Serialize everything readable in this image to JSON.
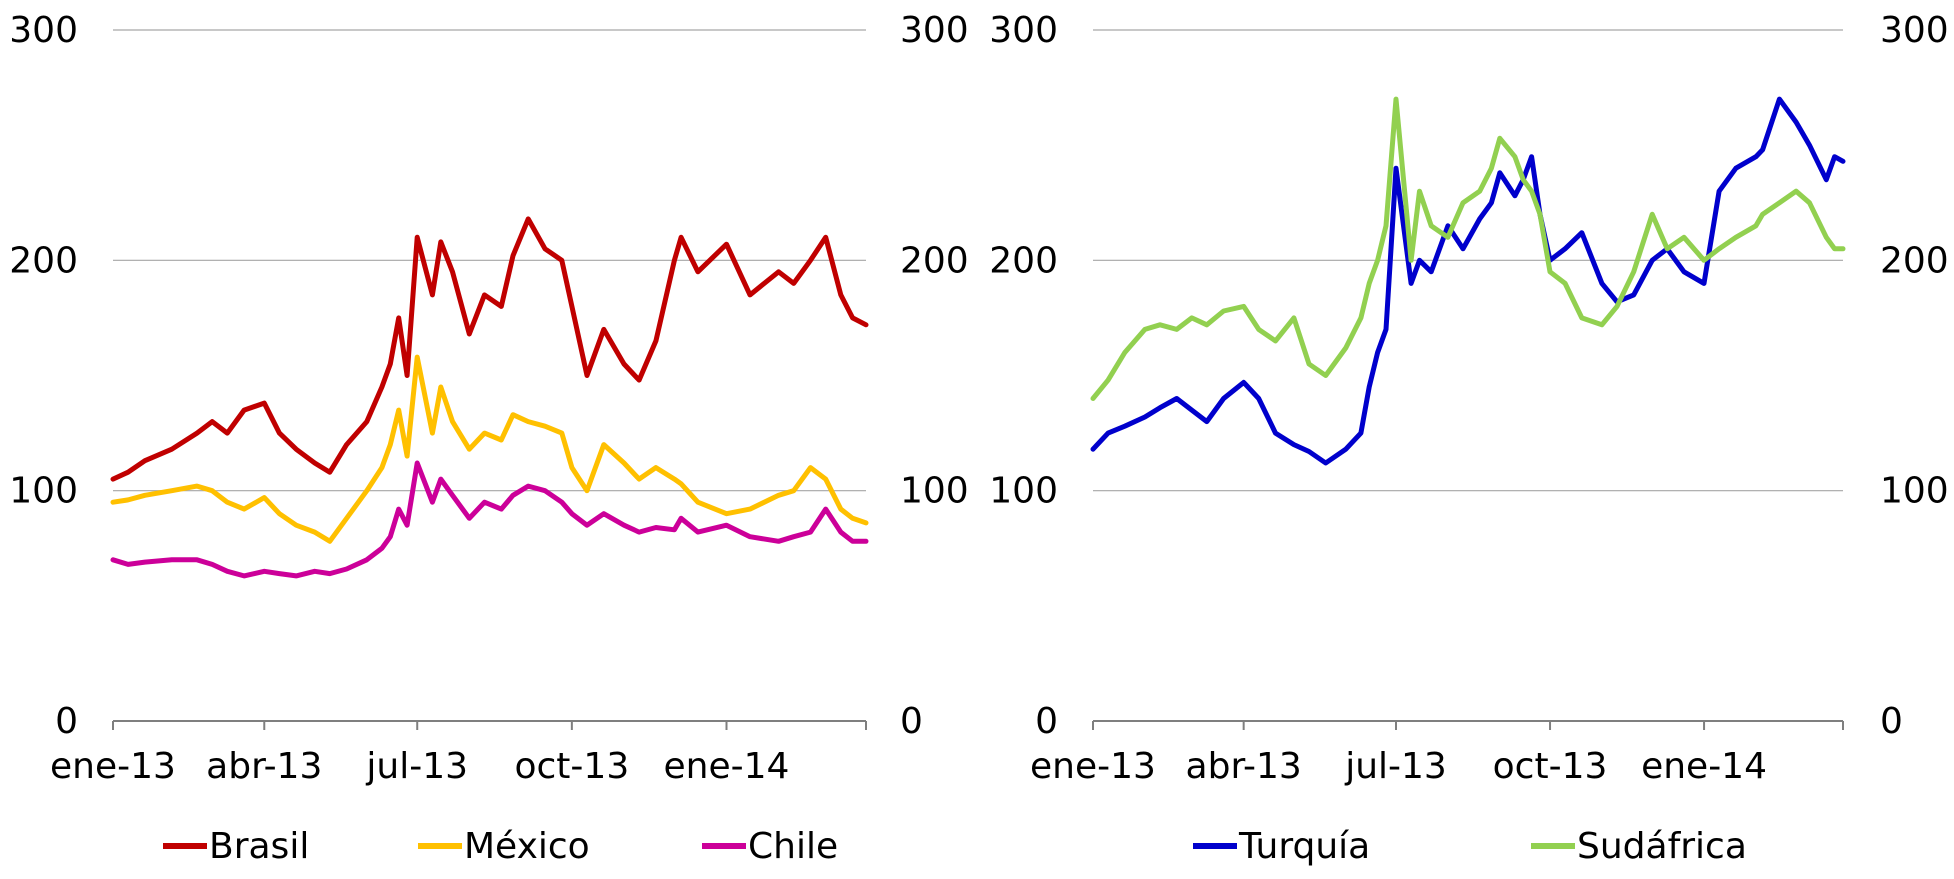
{
  "chart_data": [
    {
      "type": "line",
      "x_ticks": [
        "ene-13",
        "abr-13",
        "jul-13",
        "oct-13",
        "ene-14"
      ],
      "x_tick_dates": [
        "2013-01-01",
        "2013-04-01",
        "2013-07-01",
        "2013-10-01",
        "2014-01-01"
      ],
      "x_range": [
        "2013-01-01",
        "2014-03-25"
      ],
      "ylim": [
        0,
        300
      ],
      "y_ticks": [
        "0",
        "100",
        "200",
        "300"
      ],
      "grid": true,
      "legend_position": "bottom",
      "series": [
        {
          "name": "Brasil",
          "color": "#C00000",
          "x": [
            "2013-01-01",
            "2013-01-10",
            "2013-01-20",
            "2013-02-05",
            "2013-02-20",
            "2013-03-01",
            "2013-03-10",
            "2013-03-20",
            "2013-04-01",
            "2013-04-10",
            "2013-04-20",
            "2013-05-01",
            "2013-05-10",
            "2013-05-20",
            "2013-06-01",
            "2013-06-10",
            "2013-06-15",
            "2013-06-20",
            "2013-06-25",
            "2013-07-01",
            "2013-07-10",
            "2013-07-15",
            "2013-07-22",
            "2013-08-01",
            "2013-08-10",
            "2013-08-20",
            "2013-08-27",
            "2013-09-05",
            "2013-09-15",
            "2013-09-25",
            "2013-10-01",
            "2013-10-10",
            "2013-10-20",
            "2013-11-01",
            "2013-11-10",
            "2013-11-20",
            "2013-12-01",
            "2013-12-05",
            "2013-12-15",
            "2014-01-01",
            "2014-01-15",
            "2014-02-01",
            "2014-02-10",
            "2014-02-20",
            "2014-03-01",
            "2014-03-10",
            "2014-03-17",
            "2014-03-25"
          ],
          "values": [
            105,
            108,
            113,
            118,
            125,
            130,
            125,
            135,
            138,
            125,
            118,
            112,
            108,
            120,
            130,
            145,
            155,
            175,
            150,
            210,
            185,
            208,
            195,
            168,
            185,
            180,
            202,
            218,
            205,
            200,
            180,
            150,
            170,
            155,
            148,
            165,
            200,
            210,
            195,
            207,
            185,
            195,
            190,
            200,
            210,
            185,
            175,
            172
          ]
        },
        {
          "name": "México",
          "color": "#FFC000",
          "x": [
            "2013-01-01",
            "2013-01-10",
            "2013-01-20",
            "2013-02-05",
            "2013-02-20",
            "2013-03-01",
            "2013-03-10",
            "2013-03-20",
            "2013-04-01",
            "2013-04-10",
            "2013-04-20",
            "2013-05-01",
            "2013-05-10",
            "2013-05-20",
            "2013-06-01",
            "2013-06-10",
            "2013-06-15",
            "2013-06-20",
            "2013-06-25",
            "2013-07-01",
            "2013-07-10",
            "2013-07-15",
            "2013-07-22",
            "2013-08-01",
            "2013-08-10",
            "2013-08-20",
            "2013-08-27",
            "2013-09-05",
            "2013-09-15",
            "2013-09-25",
            "2013-10-01",
            "2013-10-10",
            "2013-10-20",
            "2013-11-01",
            "2013-11-10",
            "2013-11-20",
            "2013-12-01",
            "2013-12-05",
            "2013-12-15",
            "2014-01-01",
            "2014-01-15",
            "2014-02-01",
            "2014-02-10",
            "2014-02-20",
            "2014-03-01",
            "2014-03-10",
            "2014-03-17",
            "2014-03-25"
          ],
          "values": [
            95,
            96,
            98,
            100,
            102,
            100,
            95,
            92,
            97,
            90,
            85,
            82,
            78,
            88,
            100,
            110,
            120,
            135,
            115,
            158,
            125,
            145,
            130,
            118,
            125,
            122,
            133,
            130,
            128,
            125,
            110,
            100,
            120,
            112,
            105,
            110,
            105,
            103,
            95,
            90,
            92,
            98,
            100,
            110,
            105,
            92,
            88,
            86
          ]
        },
        {
          "name": "Chile",
          "color": "#CC0099",
          "x": [
            "2013-01-01",
            "2013-01-10",
            "2013-01-20",
            "2013-02-05",
            "2013-02-20",
            "2013-03-01",
            "2013-03-10",
            "2013-03-20",
            "2013-04-01",
            "2013-04-10",
            "2013-04-20",
            "2013-05-01",
            "2013-05-10",
            "2013-05-20",
            "2013-06-01",
            "2013-06-10",
            "2013-06-15",
            "2013-06-20",
            "2013-06-25",
            "2013-07-01",
            "2013-07-10",
            "2013-07-15",
            "2013-07-22",
            "2013-08-01",
            "2013-08-10",
            "2013-08-20",
            "2013-08-27",
            "2013-09-05",
            "2013-09-15",
            "2013-09-25",
            "2013-10-01",
            "2013-10-10",
            "2013-10-20",
            "2013-11-01",
            "2013-11-10",
            "2013-11-20",
            "2013-12-01",
            "2013-12-05",
            "2013-12-15",
            "2014-01-01",
            "2014-01-15",
            "2014-02-01",
            "2014-02-10",
            "2014-02-20",
            "2014-03-01",
            "2014-03-10",
            "2014-03-17",
            "2014-03-25"
          ],
          "values": [
            70,
            68,
            69,
            70,
            70,
            68,
            65,
            63,
            65,
            64,
            63,
            65,
            64,
            66,
            70,
            75,
            80,
            92,
            85,
            112,
            95,
            105,
            98,
            88,
            95,
            92,
            98,
            102,
            100,
            95,
            90,
            85,
            90,
            85,
            82,
            84,
            83,
            88,
            82,
            85,
            80,
            78,
            80,
            82,
            92,
            82,
            78,
            78
          ]
        }
      ]
    },
    {
      "type": "line",
      "x_ticks": [
        "ene-13",
        "abr-13",
        "jul-13",
        "oct-13",
        "ene-14"
      ],
      "x_tick_dates": [
        "2013-01-01",
        "2013-04-01",
        "2013-07-01",
        "2013-10-01",
        "2014-01-01"
      ],
      "x_range": [
        "2013-01-01",
        "2014-03-25"
      ],
      "ylim": [
        0,
        300
      ],
      "y_ticks": [
        "0",
        "100",
        "200",
        "300"
      ],
      "grid": true,
      "legend_position": "bottom",
      "series": [
        {
          "name": "Turquía",
          "color": "#0000CC",
          "x": [
            "2013-01-01",
            "2013-01-10",
            "2013-01-20",
            "2013-02-01",
            "2013-02-10",
            "2013-02-20",
            "2013-03-01",
            "2013-03-10",
            "2013-03-20",
            "2013-04-01",
            "2013-04-10",
            "2013-04-20",
            "2013-05-01",
            "2013-05-10",
            "2013-05-20",
            "2013-06-01",
            "2013-06-10",
            "2013-06-15",
            "2013-06-20",
            "2013-06-25",
            "2013-07-01",
            "2013-07-10",
            "2013-07-15",
            "2013-07-22",
            "2013-08-01",
            "2013-08-10",
            "2013-08-20",
            "2013-08-27",
            "2013-09-01",
            "2013-09-10",
            "2013-09-15",
            "2013-09-20",
            "2013-09-25",
            "2013-10-01",
            "2013-10-10",
            "2013-10-20",
            "2013-11-01",
            "2013-11-10",
            "2013-11-20",
            "2013-12-01",
            "2013-12-10",
            "2013-12-20",
            "2014-01-01",
            "2014-01-10",
            "2014-01-20",
            "2014-02-01",
            "2014-02-05",
            "2014-02-15",
            "2014-02-25",
            "2014-03-05",
            "2014-03-15",
            "2014-03-20",
            "2014-03-25"
          ],
          "values": [
            118,
            125,
            128,
            132,
            136,
            140,
            135,
            130,
            140,
            147,
            140,
            125,
            120,
            117,
            112,
            118,
            125,
            145,
            160,
            170,
            240,
            190,
            200,
            195,
            215,
            205,
            218,
            225,
            238,
            228,
            235,
            245,
            220,
            200,
            205,
            212,
            190,
            182,
            185,
            200,
            205,
            195,
            190,
            230,
            240,
            245,
            248,
            270,
            260,
            250,
            235,
            245,
            243
          ]
        },
        {
          "name": "Sudáfrica",
          "color": "#92D050",
          "x": [
            "2013-01-01",
            "2013-01-10",
            "2013-01-20",
            "2013-02-01",
            "2013-02-10",
            "2013-02-20",
            "2013-03-01",
            "2013-03-10",
            "2013-03-20",
            "2013-04-01",
            "2013-04-10",
            "2013-04-20",
            "2013-05-01",
            "2013-05-10",
            "2013-05-20",
            "2013-06-01",
            "2013-06-10",
            "2013-06-15",
            "2013-06-20",
            "2013-06-25",
            "2013-07-01",
            "2013-07-10",
            "2013-07-15",
            "2013-07-22",
            "2013-08-01",
            "2013-08-10",
            "2013-08-20",
            "2013-08-27",
            "2013-09-01",
            "2013-09-10",
            "2013-09-15",
            "2013-09-20",
            "2013-09-25",
            "2013-10-01",
            "2013-10-10",
            "2013-10-20",
            "2013-11-01",
            "2013-11-10",
            "2013-11-20",
            "2013-12-01",
            "2013-12-10",
            "2013-12-20",
            "2014-01-01",
            "2014-01-10",
            "2014-01-20",
            "2014-02-01",
            "2014-02-05",
            "2014-02-15",
            "2014-02-25",
            "2014-03-05",
            "2014-03-15",
            "2014-03-20",
            "2014-03-25"
          ],
          "values": [
            140,
            148,
            160,
            170,
            172,
            170,
            175,
            172,
            178,
            180,
            170,
            165,
            175,
            155,
            150,
            162,
            175,
            190,
            200,
            215,
            270,
            200,
            230,
            215,
            210,
            225,
            230,
            240,
            253,
            245,
            235,
            230,
            220,
            195,
            190,
            175,
            172,
            180,
            195,
            220,
            205,
            210,
            200,
            205,
            210,
            215,
            220,
            225,
            230,
            225,
            210,
            205,
            205
          ]
        }
      ]
    }
  ]
}
